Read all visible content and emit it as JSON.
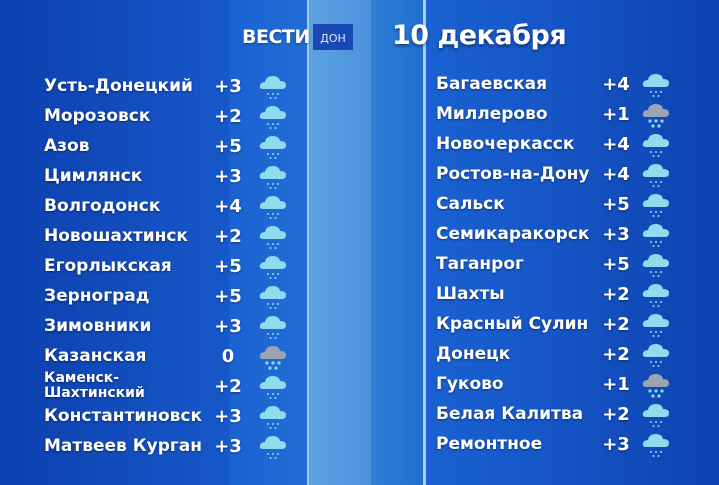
{
  "header": {
    "logo": "ВЕСТИ",
    "logo_sub": "ДОН",
    "date": "10 декабря"
  },
  "colors": {
    "rain_cloud": "#8fdcef",
    "snow_cloud": "#9aa4b3",
    "drops": "#8fdcef"
  },
  "left": [
    {
      "city": "Усть-Донецкий",
      "temp": "+3",
      "icon": "rain"
    },
    {
      "city": "Морозовск",
      "temp": "+2",
      "icon": "rain"
    },
    {
      "city": "Азов",
      "temp": "+5",
      "icon": "rain"
    },
    {
      "city": "Цимлянск",
      "temp": "+3",
      "icon": "rain"
    },
    {
      "city": "Волгодонск",
      "temp": "+4",
      "icon": "rain"
    },
    {
      "city": "Новошахтинск",
      "temp": "+2",
      "icon": "rain"
    },
    {
      "city": "Егорлыкская",
      "temp": "+5",
      "icon": "rain"
    },
    {
      "city": "Зерноград",
      "temp": "+5",
      "icon": "rain"
    },
    {
      "city": "Зимовники",
      "temp": "+3",
      "icon": "rain"
    },
    {
      "city": "Казанская",
      "temp": "0",
      "icon": "sleet"
    },
    {
      "city": "Каменск-Шахтинский",
      "temp": "+2",
      "icon": "rain"
    },
    {
      "city": "Константиновск",
      "temp": "+3",
      "icon": "rain"
    },
    {
      "city": "Матвеев Курган",
      "temp": "+3",
      "icon": "rain"
    }
  ],
  "right": [
    {
      "city": "Багаевская",
      "temp": "+4",
      "icon": "rain"
    },
    {
      "city": "Миллерово",
      "temp": "+1",
      "icon": "sleet"
    },
    {
      "city": "Новочеркасск",
      "temp": "+4",
      "icon": "rain"
    },
    {
      "city": "Ростов-на-Дону",
      "temp": "+4",
      "icon": "rain"
    },
    {
      "city": "Сальск",
      "temp": "+5",
      "icon": "rain"
    },
    {
      "city": "Семикаракорск",
      "temp": "+3",
      "icon": "rain"
    },
    {
      "city": "Таганрог",
      "temp": "+5",
      "icon": "rain"
    },
    {
      "city": "Шахты",
      "temp": "+2",
      "icon": "rain"
    },
    {
      "city": "Красный Сулин",
      "temp": "+2",
      "icon": "rain"
    },
    {
      "city": "Донецк",
      "temp": "+2",
      "icon": "rain"
    },
    {
      "city": "Гуково",
      "temp": "+1",
      "icon": "sleet"
    },
    {
      "city": "Белая Калитва",
      "temp": "+2",
      "icon": "rain"
    },
    {
      "city": "Ремонтное",
      "temp": "+3",
      "icon": "rain"
    }
  ]
}
